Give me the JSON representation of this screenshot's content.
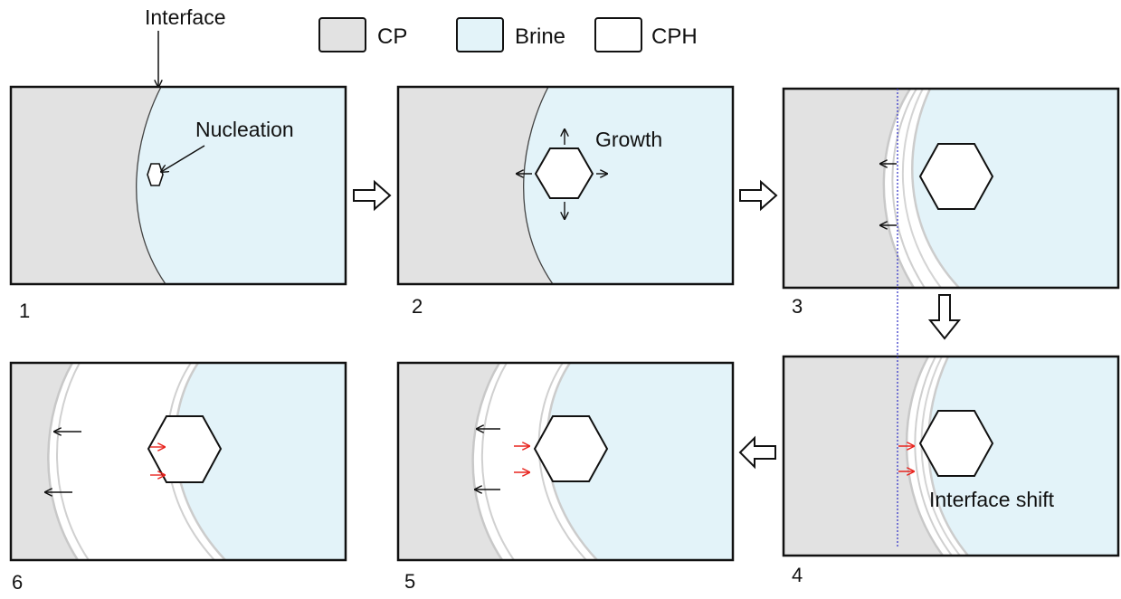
{
  "legend": [
    {
      "label": "CP",
      "color": "#e2e2e2"
    },
    {
      "label": "Brine",
      "color": "#e3f3f9"
    },
    {
      "label": "CPH",
      "color": "#ffffff"
    }
  ],
  "annotations": {
    "interface": "Interface",
    "nucleation": "Nucleation",
    "growth": "Growth",
    "interface_shift": "Interface shift"
  },
  "panels": [
    {
      "number": "1"
    },
    {
      "number": "2"
    },
    {
      "number": "3"
    },
    {
      "number": "4"
    },
    {
      "number": "5"
    },
    {
      "number": "6"
    }
  ],
  "colors": {
    "cp": "#e2e2e2",
    "brine": "#e3f3f9",
    "cph": "#ffffff",
    "border": "#111111",
    "red_arrow": "#e8251f",
    "guide_line": "#3b3bc9"
  }
}
